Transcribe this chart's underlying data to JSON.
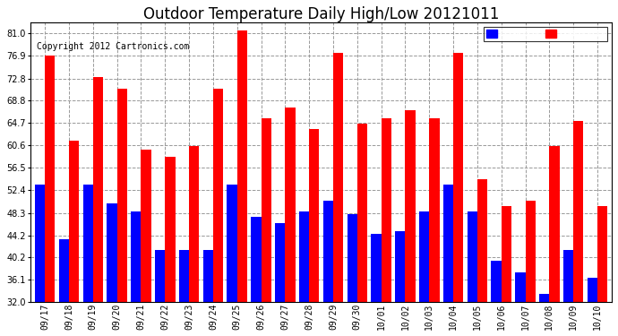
{
  "title": "Outdoor Temperature Daily High/Low 20121011",
  "copyright": "Copyright 2012 Cartronics.com",
  "categories": [
    "09/17",
    "09/18",
    "09/19",
    "09/20",
    "09/21",
    "09/22",
    "09/23",
    "09/24",
    "09/25",
    "09/26",
    "09/27",
    "09/28",
    "09/29",
    "09/30",
    "10/01",
    "10/02",
    "10/03",
    "10/04",
    "10/05",
    "10/06",
    "10/07",
    "10/08",
    "10/09",
    "10/10"
  ],
  "high": [
    76.9,
    61.5,
    73.0,
    71.0,
    59.8,
    58.5,
    60.5,
    71.0,
    81.5,
    65.5,
    67.5,
    63.5,
    77.5,
    64.5,
    65.5,
    67.0,
    65.5,
    77.5,
    54.5,
    49.5,
    50.5,
    60.5,
    65.0,
    49.5
  ],
  "low": [
    53.5,
    43.5,
    53.5,
    50.0,
    48.5,
    41.5,
    41.5,
    41.5,
    53.5,
    47.5,
    46.5,
    48.5,
    50.5,
    48.0,
    44.5,
    45.0,
    48.5,
    53.5,
    48.5,
    39.5,
    37.5,
    33.5,
    41.5,
    36.5
  ],
  "bar_width": 0.42,
  "low_color": "#0000ff",
  "high_color": "#ff0000",
  "background_color": "#ffffff",
  "grid_color": "#999999",
  "yticks": [
    32.0,
    36.1,
    40.2,
    44.2,
    48.3,
    52.4,
    56.5,
    60.6,
    64.7,
    68.8,
    72.8,
    76.9,
    81.0
  ],
  "ymin": 32.0,
  "ymax": 83.0,
  "title_fontsize": 12,
  "tick_fontsize": 7,
  "copyright_fontsize": 7
}
